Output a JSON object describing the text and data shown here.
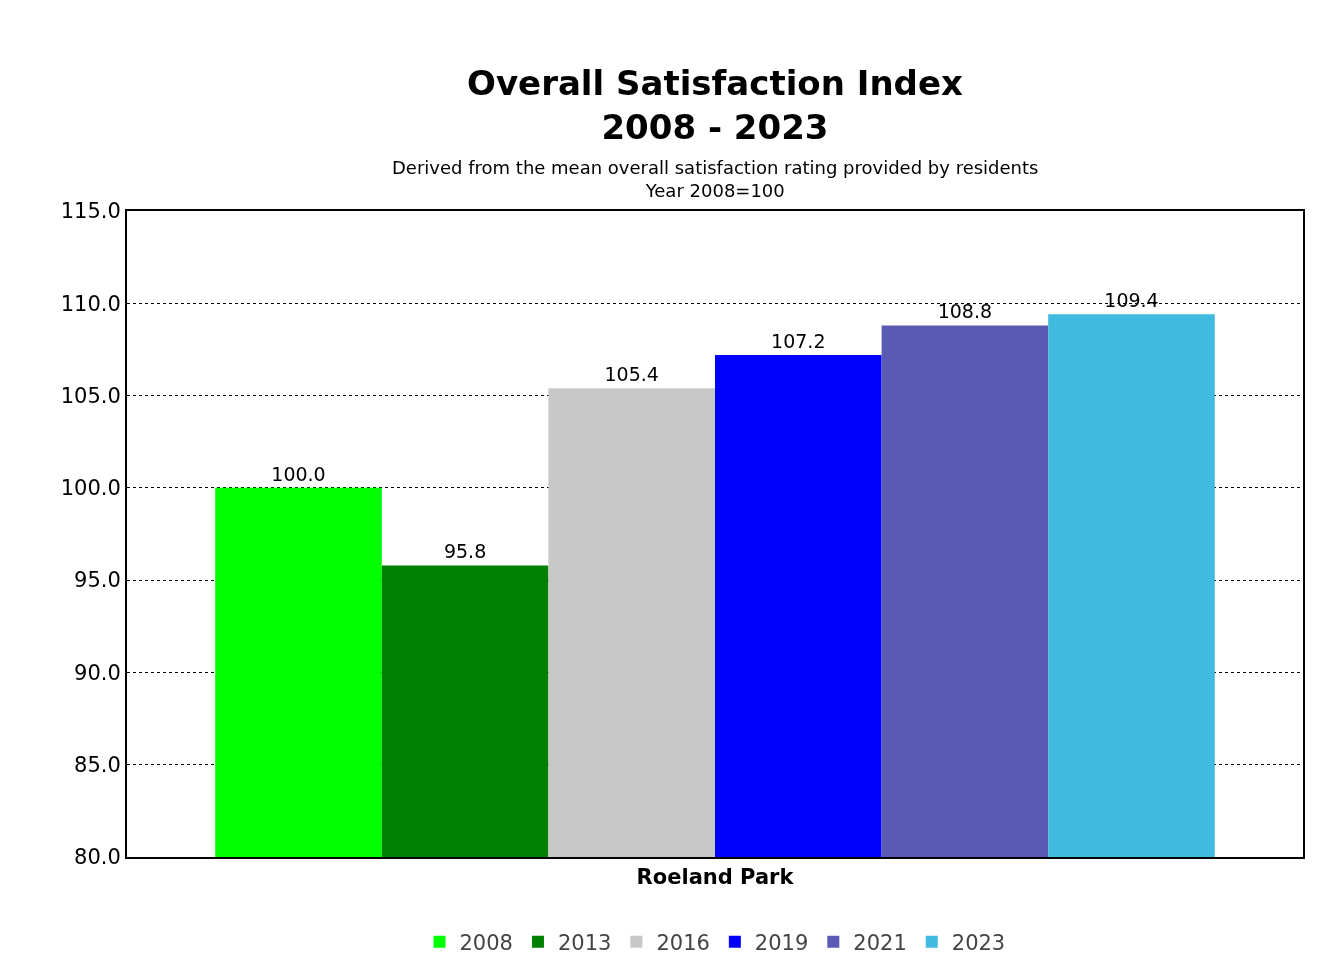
{
  "chart_data": {
    "type": "bar",
    "title": "Overall Satisfaction Index\n2008 - 2023",
    "subtitle": "Derived from the mean overall satisfaction rating provided by residents\nYear 2008=100",
    "categories": [
      "Roeland Park"
    ],
    "series": [
      {
        "name": "2008",
        "color": "#00ff00",
        "values": [
          100.0
        ]
      },
      {
        "name": "2013",
        "color": "#008000",
        "values": [
          95.8
        ]
      },
      {
        "name": "2016",
        "color": "#c8c8c8",
        "values": [
          105.4
        ]
      },
      {
        "name": "2019",
        "color": "#0000ff",
        "values": [
          107.2
        ]
      },
      {
        "name": "2021",
        "color": "#5a5ab4",
        "values": [
          108.8
        ]
      },
      {
        "name": "2023",
        "color": "#40bade",
        "values": [
          109.4
        ]
      }
    ],
    "ylim": [
      80,
      115
    ],
    "yticks": [
      {
        "value": 80,
        "label": "80.0"
      },
      {
        "value": 85,
        "label": "85.0"
      },
      {
        "value": 90,
        "label": "90.0"
      },
      {
        "value": 95,
        "label": "95.0"
      },
      {
        "value": 100,
        "label": "100.0"
      },
      {
        "value": 105,
        "label": "105.0"
      },
      {
        "value": 110,
        "label": "110.0"
      },
      {
        "value": 115,
        "label": "115.0"
      }
    ],
    "value_labels": [
      "100.0",
      "95.8",
      "105.4",
      "107.2",
      "108.8",
      "109.4"
    ],
    "grid": "y",
    "legend": "bottom"
  }
}
